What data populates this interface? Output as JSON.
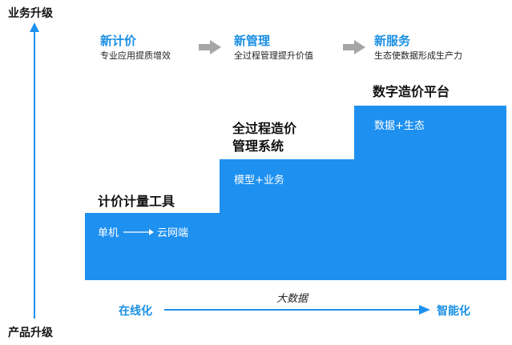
{
  "axis": {
    "top_label": "业务升级",
    "bottom_label": "产品升级",
    "bottom_left": "在线化",
    "bottom_right": "智能化",
    "bottom_middle": "大数据"
  },
  "stages": [
    {
      "name": "新计价",
      "desc": "专业应用提质增效"
    },
    {
      "name": "新管理",
      "desc": "全过程管理提升价值"
    },
    {
      "name": "新服务",
      "desc": "生态使数据形成生产力"
    }
  ],
  "steps": [
    {
      "title": "计价计量工具",
      "caption_left": "单机",
      "caption_right": "云网端"
    },
    {
      "title_line1": "全过程造价",
      "title_line2": "管理系统",
      "caption": "模型+业务"
    },
    {
      "title": "数字造价平台",
      "caption": "数据+生态"
    }
  ],
  "colors": {
    "step_fill": "#1e90f0",
    "accent_text": "#1a8fe3",
    "arrow_gray": "#a6a6a6"
  }
}
